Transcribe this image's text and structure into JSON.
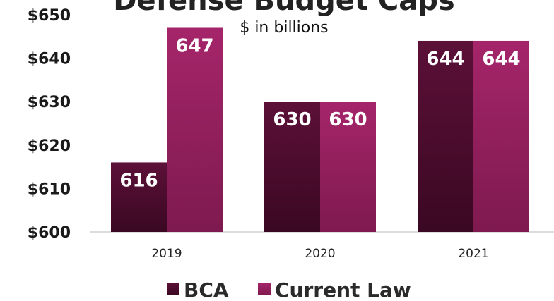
{
  "chart_data": {
    "type": "bar",
    "title": "Defense Budget Caps",
    "subtitle": "$ in billions",
    "categories": [
      "2019",
      "2020",
      "2021"
    ],
    "series": [
      {
        "name": "BCA",
        "values": [
          616,
          630,
          644
        ],
        "color": "#5a0f35"
      },
      {
        "name": "Current Law",
        "values": [
          647,
          630,
          644
        ],
        "color": "#9c2262"
      }
    ],
    "ylim": [
      600,
      650
    ],
    "yticks": [
      600,
      610,
      620,
      630,
      640,
      650
    ],
    "ytick_labels": [
      "$600",
      "$610",
      "$620",
      "$630",
      "$640",
      "$650"
    ],
    "grid": false,
    "legend": "bottom"
  }
}
